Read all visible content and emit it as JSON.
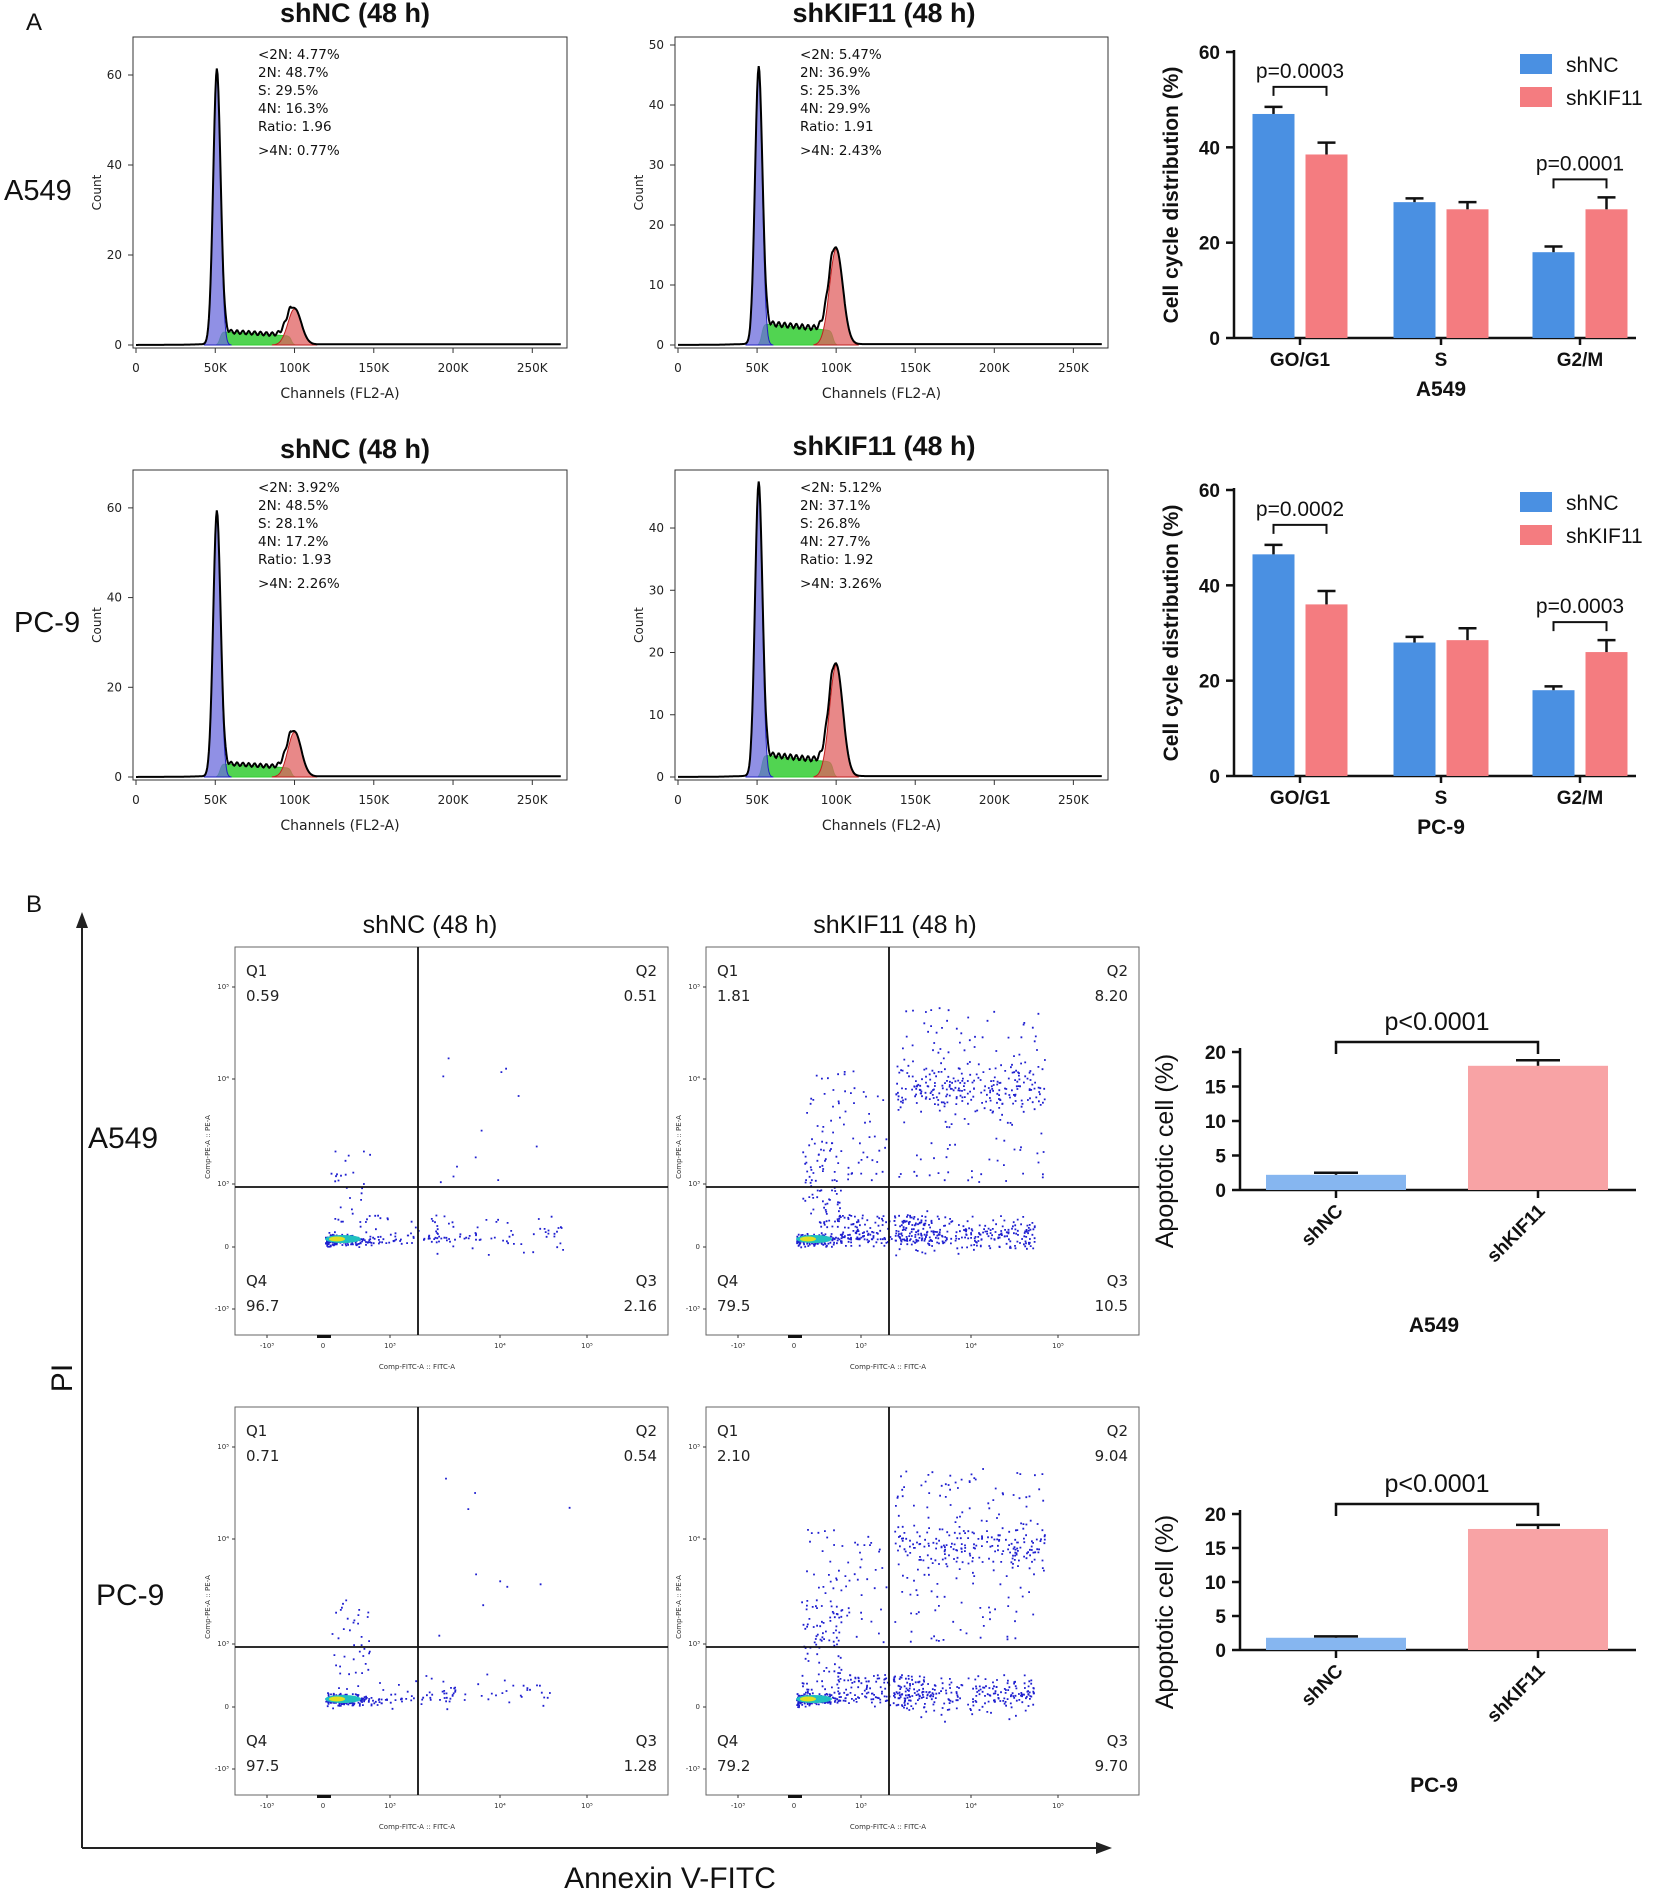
{
  "panel_labels": {
    "a": "A",
    "b": "B"
  },
  "colors": {
    "shNC": "#4a90e2",
    "shKIF11": "#f47c80",
    "g1": "#6b6bdc",
    "s": "#33cc33",
    "g2": "#e06060",
    "dot": "#1f1fd0"
  },
  "histograms": {
    "row_labels": [
      "A549",
      "PC-9"
    ],
    "xlabel": "Channels (FL2-A)",
    "ylabel": "Count",
    "x_ticks": [
      "0",
      "50K",
      "100K",
      "150K",
      "200K",
      "250K"
    ],
    "panels": [
      {
        "title": "shNC (48 h)",
        "stats": [
          "<2N: 4.77%",
          "2N: 48.7%",
          "S: 29.5%",
          "4N: 16.3%",
          "Ratio: 1.96",
          ">4N: 0.77%"
        ],
        "y_ticks": [
          "0",
          "20",
          "40",
          "60"
        ],
        "ymax": 68,
        "g1_peak": 61,
        "g2_peak": 8
      },
      {
        "title": "shKIF11 (48 h)",
        "stats": [
          "<2N: 5.47%",
          "2N: 36.9%",
          "S: 25.3%",
          "4N: 29.9%",
          "Ratio: 1.91",
          ">4N: 2.43%"
        ],
        "y_ticks": [
          "0",
          "10",
          "20",
          "30",
          "40",
          "50"
        ],
        "ymax": 51,
        "g1_peak": 46,
        "g2_peak": 16
      },
      {
        "title": "shNC (48 h)",
        "stats": [
          "<2N: 3.92%",
          "2N: 48.5%",
          "S: 28.1%",
          "4N: 17.2%",
          "Ratio: 1.93",
          ">4N: 2.26%"
        ],
        "y_ticks": [
          "0",
          "20",
          "40",
          "60"
        ],
        "ymax": 68,
        "g1_peak": 59,
        "g2_peak": 10
      },
      {
        "title": "shKIF11 (48 h)",
        "stats": [
          "<2N: 5.12%",
          "2N: 37.1%",
          "S: 26.8%",
          "4N: 27.7%",
          "Ratio: 1.92",
          ">4N: 3.26%"
        ],
        "y_ticks": [
          "0",
          "10",
          "20",
          "30",
          "40"
        ],
        "ymax": 49,
        "g1_peak": 47,
        "g2_peak": 18
      }
    ]
  },
  "flow": {
    "row_labels": [
      "A549",
      "PC-9"
    ],
    "titles": [
      "shNC (48 h)",
      "shKIF11 (48 h)"
    ],
    "y_axis_label": "PI",
    "x_axis_label": "Annexin V-FITC",
    "small_xlabel": "Comp-FITC-A :: FITC-A",
    "small_ylabel": "Comp-PE-A :: PE-A",
    "tick_labels_y": [
      "10⁵",
      "10⁴",
      "10³",
      "0",
      "-10³"
    ],
    "tick_labels_x": [
      "-10³",
      "0",
      "10³",
      "10⁴",
      "10⁵"
    ],
    "quadrant_names": [
      "Q1",
      "Q2",
      "Q4",
      "Q3"
    ],
    "panels": [
      {
        "q1": "0.59",
        "q2": "0.51",
        "q4": "96.7",
        "q3": "2.16"
      },
      {
        "q1": "1.81",
        "q2": "8.20",
        "q4": "79.5",
        "q3": "10.5"
      },
      {
        "q1": "0.71",
        "q2": "0.54",
        "q4": "97.5",
        "q3": "1.28"
      },
      {
        "q1": "2.10",
        "q2": "9.04",
        "q4": "79.2",
        "q3": "9.70"
      }
    ]
  },
  "chart_data": [
    {
      "type": "bar",
      "title": "A549",
      "xlabel": "A549",
      "ylabel": "Cell cycle distribution (%)",
      "categories": [
        "GO/G1",
        "S",
        "G2/M"
      ],
      "series": [
        {
          "name": "shNC",
          "values": [
            47,
            28.5,
            18
          ],
          "errors": [
            1.5,
            0.8,
            1.2
          ]
        },
        {
          "name": "shKIF11",
          "values": [
            38.5,
            27,
            27
          ],
          "errors": [
            2.5,
            1.5,
            2.5
          ]
        }
      ],
      "y_ticks": [
        "0",
        "20",
        "40",
        "60"
      ],
      "ylim": [
        0,
        60
      ],
      "annotations": [
        {
          "text": "p=0.0003",
          "category": "GO/G1"
        },
        {
          "text": "p=0.0001",
          "category": "G2/M"
        }
      ],
      "legend": "top-right"
    },
    {
      "type": "bar",
      "title": "PC-9",
      "xlabel": "PC-9",
      "ylabel": "Cell cycle distribution (%)",
      "categories": [
        "GO/G1",
        "S",
        "G2/M"
      ],
      "series": [
        {
          "name": "shNC",
          "values": [
            46.5,
            28,
            18
          ],
          "errors": [
            2,
            1.2,
            0.8
          ]
        },
        {
          "name": "shKIF11",
          "values": [
            36,
            28.5,
            26
          ],
          "errors": [
            2.8,
            2.5,
            2.5
          ]
        }
      ],
      "y_ticks": [
        "0",
        "20",
        "40",
        "60"
      ],
      "ylim": [
        0,
        60
      ],
      "annotations": [
        {
          "text": "p=0.0002",
          "category": "GO/G1"
        },
        {
          "text": "p=0.0003",
          "category": "G2/M"
        }
      ],
      "legend": "top-right"
    },
    {
      "type": "bar",
      "title": "A549",
      "xlabel": "A549",
      "ylabel": "Apoptotic cell (%)",
      "categories": [
        "shNC",
        "shKIF11"
      ],
      "values": [
        2.2,
        18
      ],
      "errors": [
        0.3,
        0.8
      ],
      "y_ticks": [
        "0",
        "5",
        "10",
        "15",
        "20"
      ],
      "ylim": [
        0,
        20
      ],
      "annotations": [
        {
          "text": "p<0.0001"
        }
      ]
    },
    {
      "type": "bar",
      "title": "PC-9",
      "xlabel": "PC-9",
      "ylabel": "Apoptotic cell (%)",
      "categories": [
        "shNC",
        "shKIF11"
      ],
      "values": [
        1.8,
        17.8
      ],
      "errors": [
        0.2,
        0.6
      ],
      "y_ticks": [
        "0",
        "5",
        "10",
        "15",
        "20"
      ],
      "ylim": [
        0,
        20
      ],
      "annotations": [
        {
          "text": "p<0.0001"
        }
      ]
    }
  ]
}
